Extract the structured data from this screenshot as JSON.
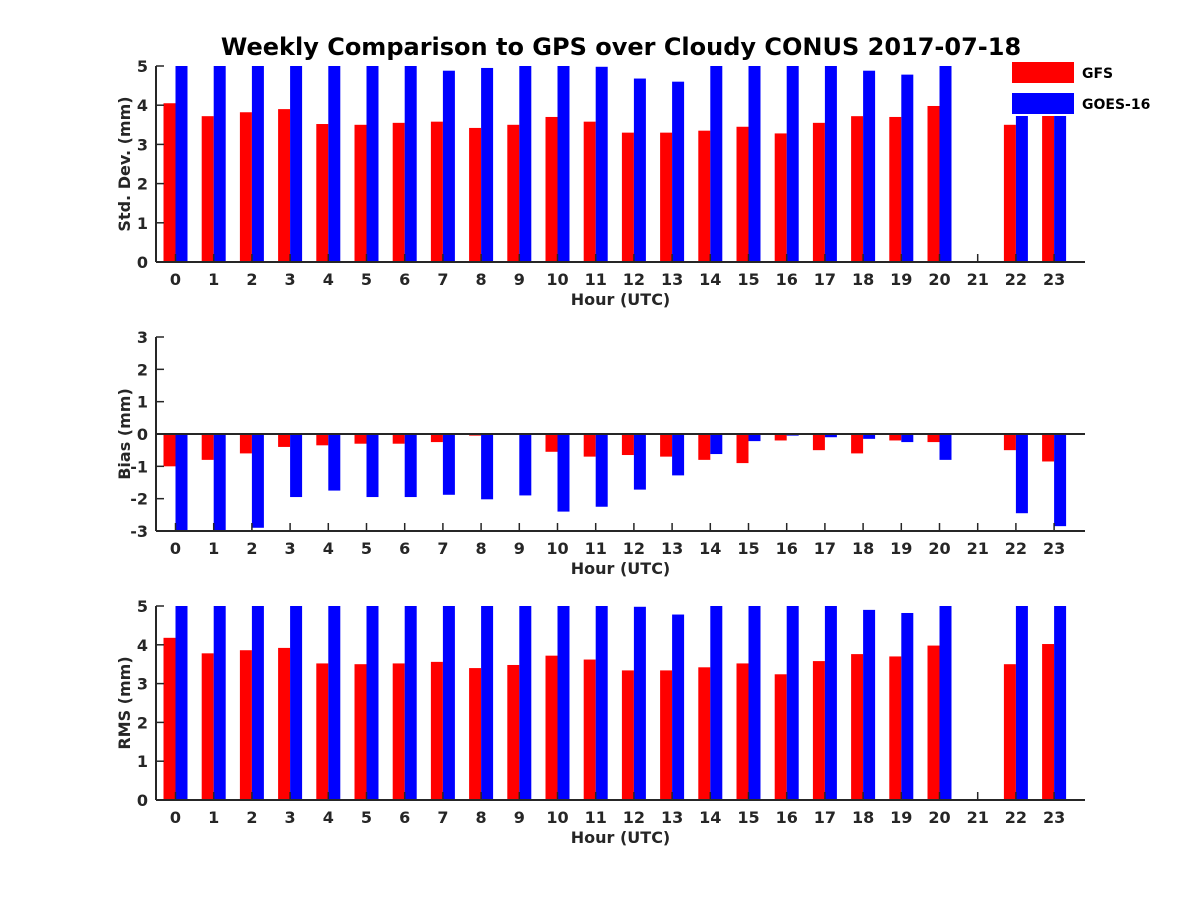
{
  "figure": {
    "title": "Weekly Comparison to GPS over Cloudy CONUS 2017-07-18"
  },
  "legend": {
    "placement": "top-right",
    "entries": [
      {
        "label": "GFS",
        "color": "#ff0000"
      },
      {
        "label": "GOES-16",
        "color": "#0000ff"
      }
    ]
  },
  "chart_data": [
    {
      "type": "bar",
      "xlabel": "Hour (UTC)",
      "ylabel": "Std. Dev. (mm)",
      "ylim": [
        0,
        5
      ],
      "yticks": [
        0,
        1,
        2,
        3,
        4,
        5
      ],
      "categories": [
        "0",
        "1",
        "2",
        "3",
        "4",
        "5",
        "6",
        "7",
        "8",
        "9",
        "10",
        "11",
        "12",
        "13",
        "14",
        "15",
        "16",
        "17",
        "18",
        "19",
        "20",
        "21",
        "22",
        "23"
      ],
      "series": [
        {
          "name": "GFS",
          "color": "#ff0000",
          "values": [
            4.05,
            3.72,
            3.82,
            3.9,
            3.52,
            3.5,
            3.55,
            3.58,
            3.42,
            3.5,
            3.7,
            3.58,
            3.3,
            3.3,
            3.35,
            3.45,
            3.28,
            3.55,
            3.72,
            3.7,
            3.98,
            null,
            3.5,
            4.0
          ]
        },
        {
          "name": "GOES-16",
          "color": "#0000ff",
          "values": [
            5.0,
            5.0,
            5.0,
            5.0,
            5.0,
            5.0,
            5.0,
            4.88,
            4.95,
            5.0,
            5.0,
            4.98,
            4.68,
            4.6,
            5.0,
            5.0,
            5.0,
            5.0,
            4.88,
            4.78,
            5.0,
            null,
            5.0,
            5.0
          ]
        }
      ]
    },
    {
      "type": "bar",
      "xlabel": "Hour (UTC)",
      "ylabel": "Bias (mm)",
      "ylim": [
        -3,
        3
      ],
      "yticks": [
        -3,
        -2,
        -1,
        0,
        1,
        2,
        3
      ],
      "zero_line": true,
      "categories": [
        "0",
        "1",
        "2",
        "3",
        "4",
        "5",
        "6",
        "7",
        "8",
        "9",
        "10",
        "11",
        "12",
        "13",
        "14",
        "15",
        "16",
        "17",
        "18",
        "19",
        "20",
        "21",
        "22",
        "23"
      ],
      "series": [
        {
          "name": "GFS",
          "color": "#ff0000",
          "values": [
            -1.0,
            -0.8,
            -0.6,
            -0.4,
            -0.35,
            -0.3,
            -0.3,
            -0.25,
            -0.05,
            -0.02,
            -0.55,
            -0.7,
            -0.65,
            -0.7,
            -0.8,
            -0.9,
            -0.2,
            -0.5,
            -0.6,
            -0.2,
            -0.25,
            null,
            -0.5,
            -0.85
          ]
        },
        {
          "name": "GOES-16",
          "color": "#0000ff",
          "values": [
            -3.0,
            -3.0,
            -2.9,
            -1.95,
            -1.75,
            -1.95,
            -1.95,
            -1.88,
            -2.02,
            -1.9,
            -2.4,
            -2.25,
            -1.72,
            -1.28,
            -0.62,
            -0.22,
            -0.05,
            -0.1,
            -0.15,
            -0.25,
            -0.8,
            null,
            -2.45,
            -2.85
          ]
        }
      ]
    },
    {
      "type": "bar",
      "xlabel": "Hour (UTC)",
      "ylabel": "RMS (mm)",
      "ylim": [
        0,
        5
      ],
      "yticks": [
        0,
        1,
        2,
        3,
        4,
        5
      ],
      "categories": [
        "0",
        "1",
        "2",
        "3",
        "4",
        "5",
        "6",
        "7",
        "8",
        "9",
        "10",
        "11",
        "12",
        "13",
        "14",
        "15",
        "16",
        "17",
        "18",
        "19",
        "20",
        "21",
        "22",
        "23"
      ],
      "series": [
        {
          "name": "GFS",
          "color": "#ff0000",
          "values": [
            4.18,
            3.78,
            3.86,
            3.92,
            3.52,
            3.5,
            3.52,
            3.56,
            3.4,
            3.48,
            3.72,
            3.62,
            3.34,
            3.34,
            3.42,
            3.52,
            3.24,
            3.58,
            3.76,
            3.7,
            3.98,
            null,
            3.5,
            4.02
          ]
        },
        {
          "name": "GOES-16",
          "color": "#0000ff",
          "values": [
            5.0,
            5.0,
            5.0,
            5.0,
            5.0,
            5.0,
            5.0,
            5.0,
            5.0,
            5.0,
            5.0,
            5.0,
            4.98,
            4.78,
            5.0,
            5.0,
            5.0,
            5.0,
            4.9,
            4.82,
            5.0,
            null,
            5.0,
            5.0
          ]
        }
      ]
    }
  ]
}
